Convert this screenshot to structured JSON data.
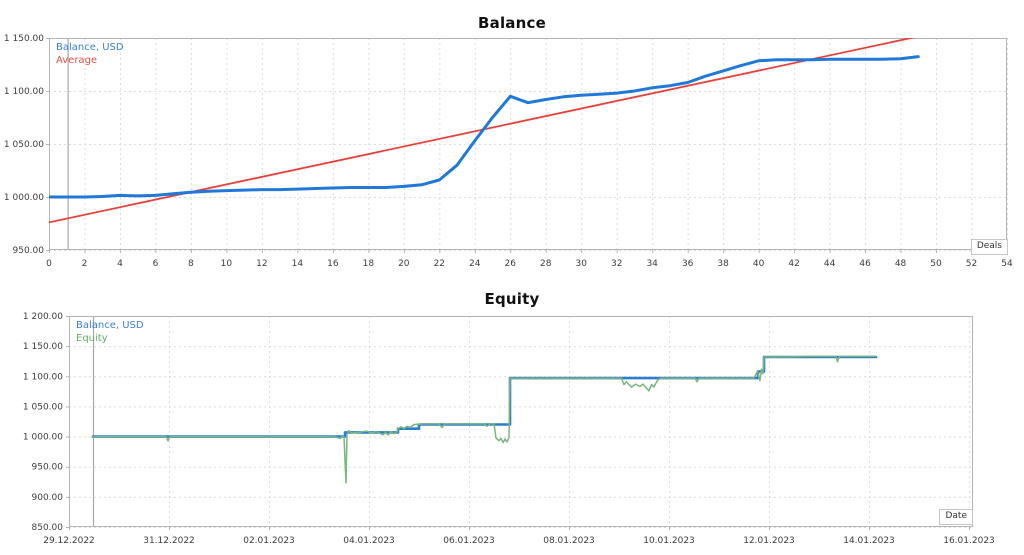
{
  "page": {
    "background": "#ffffff"
  },
  "chart_data": [
    {
      "type": "line",
      "title": "Balance",
      "axis_unit_label": "Deals",
      "legend": [
        {
          "label": "Balance, USD",
          "color": "#3d7fd0"
        },
        {
          "label": "Average",
          "color": "#e0524a"
        }
      ],
      "x_axis": {
        "range": [
          0,
          54
        ],
        "ticks": [
          0,
          2,
          4,
          6,
          8,
          10,
          12,
          14,
          16,
          18,
          20,
          22,
          24,
          26,
          28,
          30,
          32,
          34,
          36,
          38,
          40,
          42,
          44,
          46,
          48,
          50,
          52,
          54
        ],
        "grid": true
      },
      "y_axis": {
        "range": [
          950,
          1150
        ],
        "grid": true,
        "ticks": [
          {
            "v": 950,
            "label": "950.00"
          },
          {
            "v": 1000,
            "label": "1 000.00"
          },
          {
            "v": 1050,
            "label": "1 050.00"
          },
          {
            "v": 1100,
            "label": "1 100.00"
          },
          {
            "v": 1150,
            "label": "1 150.00"
          }
        ]
      },
      "start_line_x": 1.05,
      "series": [
        {
          "name": "initial-deposit",
          "color": "#a9c7e8",
          "width": 3,
          "points": [
            [
              0,
              1000
            ],
            [
              1.05,
              1000
            ]
          ]
        },
        {
          "name": "average",
          "color": "#e8403a",
          "width": 1.8,
          "points": [
            [
              0,
              976
            ],
            [
              49.3,
              1152.5
            ]
          ]
        },
        {
          "name": "balance",
          "color": "#2079d8",
          "width": 3,
          "points": [
            [
              0,
              1000
            ],
            [
              1,
              1000
            ],
            [
              2,
              1000
            ],
            [
              3,
              1000.5
            ],
            [
              4,
              1001.5
            ],
            [
              5,
              1001
            ],
            [
              6,
              1001.5
            ],
            [
              7,
              1003
            ],
            [
              8,
              1004.5
            ],
            [
              9,
              1005.5
            ],
            [
              10,
              1006
            ],
            [
              11,
              1006.5
            ],
            [
              12,
              1007
            ],
            [
              13,
              1007
            ],
            [
              14,
              1007.5
            ],
            [
              15,
              1008
            ],
            [
              16,
              1008.5
            ],
            [
              17,
              1009
            ],
            [
              18,
              1009
            ],
            [
              19,
              1009
            ],
            [
              20,
              1010
            ],
            [
              21,
              1011.5
            ],
            [
              22,
              1016
            ],
            [
              23,
              1030
            ],
            [
              24,
              1053
            ],
            [
              25,
              1075
            ],
            [
              26,
              1095
            ],
            [
              27,
              1089
            ],
            [
              28,
              1092
            ],
            [
              29,
              1094.5
            ],
            [
              30,
              1096
            ],
            [
              31,
              1097
            ],
            [
              32,
              1098
            ],
            [
              33,
              1100
            ],
            [
              34,
              1103
            ],
            [
              35,
              1105
            ],
            [
              36,
              1108
            ],
            [
              37,
              1114
            ],
            [
              38,
              1119
            ],
            [
              39,
              1124
            ],
            [
              40,
              1128.5
            ],
            [
              41,
              1129.5
            ],
            [
              42,
              1129.5
            ],
            [
              43,
              1129.5
            ],
            [
              44,
              1130
            ],
            [
              45,
              1130
            ],
            [
              46,
              1130
            ],
            [
              47,
              1130
            ],
            [
              48,
              1130.5
            ],
            [
              49,
              1132.5
            ]
          ]
        }
      ]
    },
    {
      "type": "line",
      "title": "Equity",
      "axis_unit_label": "Date",
      "legend": [
        {
          "label": "Balance, USD",
          "color": "#3d7fd0"
        },
        {
          "label": "Equity",
          "color": "#6aaa70"
        }
      ],
      "x_axis": {
        "range": [
          0,
          18.08
        ],
        "grid": true,
        "ticks": [
          {
            "v": 0,
            "label": "29.12.2022"
          },
          {
            "v": 2,
            "label": "31.12.2022"
          },
          {
            "v": 4,
            "label": "02.01.2023"
          },
          {
            "v": 6,
            "label": "04.01.2023"
          },
          {
            "v": 8,
            "label": "06.01.2023"
          },
          {
            "v": 10,
            "label": "08.01.2023"
          },
          {
            "v": 12,
            "label": "10.01.2023"
          },
          {
            "v": 14,
            "label": "12.01.2023"
          },
          {
            "v": 16,
            "label": "14.01.2023"
          },
          {
            "v": 18,
            "label": "16.01.2023"
          }
        ]
      },
      "y_axis": {
        "range": [
          850,
          1200
        ],
        "grid": true,
        "ticks": [
          {
            "v": 850,
            "label": "850.00"
          },
          {
            "v": 900,
            "label": "900.00"
          },
          {
            "v": 950,
            "label": "950.00"
          },
          {
            "v": 1000,
            "label": "1 000.00"
          },
          {
            "v": 1050,
            "label": "1 050.00"
          },
          {
            "v": 1100,
            "label": "1 100.00"
          },
          {
            "v": 1150,
            "label": "1 150.00"
          },
          {
            "v": 1200,
            "label": "1 200.00"
          }
        ]
      },
      "start_line_x": 0.48,
      "series": [
        {
          "name": "balance",
          "color": "#2b7cd3",
          "width": 2.6,
          "points": [
            [
              0.48,
              1000
            ],
            [
              5.52,
              1000
            ],
            [
              5.52,
              1007
            ],
            [
              6.58,
              1007
            ],
            [
              6.58,
              1013
            ],
            [
              7.0,
              1013
            ],
            [
              7.0,
              1020
            ],
            [
              8.82,
              1020
            ],
            [
              8.82,
              1097
            ],
            [
              13.78,
              1097
            ],
            [
              13.78,
              1108
            ],
            [
              13.9,
              1108
            ],
            [
              13.9,
              1132
            ],
            [
              16.14,
              1132
            ]
          ]
        },
        {
          "name": "equity",
          "color": "#79b57e",
          "width": 1.5,
          "points": [
            [
              0.48,
              1000
            ],
            [
              1.0,
              1000
            ],
            [
              1.94,
              1000
            ],
            [
              1.98,
              993
            ],
            [
              2.02,
              1000
            ],
            [
              3.0,
              1000
            ],
            [
              4.0,
              1000
            ],
            [
              5.0,
              1000
            ],
            [
              5.3,
              1000
            ],
            [
              5.42,
              997
            ],
            [
              5.46,
              1000
            ],
            [
              5.5,
              1000
            ],
            [
              5.52,
              960
            ],
            [
              5.54,
              923
            ],
            [
              5.56,
              1004
            ],
            [
              5.6,
              1010
            ],
            [
              5.64,
              1006
            ],
            [
              5.8,
              1007
            ],
            [
              5.95,
              1009
            ],
            [
              6.05,
              1006
            ],
            [
              6.15,
              1008
            ],
            [
              6.28,
              1003
            ],
            [
              6.33,
              1007
            ],
            [
              6.38,
              1003
            ],
            [
              6.44,
              1008
            ],
            [
              6.5,
              1005
            ],
            [
              6.56,
              1008
            ],
            [
              6.58,
              1013
            ],
            [
              6.64,
              1016
            ],
            [
              6.7,
              1013
            ],
            [
              6.76,
              1017
            ],
            [
              6.82,
              1015
            ],
            [
              6.9,
              1020
            ],
            [
              7.1,
              1021
            ],
            [
              7.4,
              1021
            ],
            [
              7.46,
              1015
            ],
            [
              7.52,
              1021
            ],
            [
              7.9,
              1021
            ],
            [
              8.3,
              1021
            ],
            [
              8.36,
              1017
            ],
            [
              8.42,
              1021
            ],
            [
              8.5,
              1021
            ],
            [
              8.54,
              998
            ],
            [
              8.6,
              993
            ],
            [
              8.64,
              997
            ],
            [
              8.68,
              990
            ],
            [
              8.72,
              996
            ],
            [
              8.76,
              991
            ],
            [
              8.8,
              999
            ],
            [
              8.82,
              1097
            ],
            [
              9.3,
              1097
            ],
            [
              10.0,
              1097
            ],
            [
              10.8,
              1097
            ],
            [
              11.05,
              1097
            ],
            [
              11.1,
              1086
            ],
            [
              11.15,
              1091
            ],
            [
              11.25,
              1082
            ],
            [
              11.33,
              1087
            ],
            [
              11.42,
              1083
            ],
            [
              11.48,
              1087
            ],
            [
              11.54,
              1081
            ],
            [
              11.6,
              1076
            ],
            [
              11.65,
              1086
            ],
            [
              11.7,
              1082
            ],
            [
              11.76,
              1092
            ],
            [
              11.82,
              1097
            ],
            [
              12.3,
              1097
            ],
            [
              12.52,
              1097
            ],
            [
              12.56,
              1091
            ],
            [
              12.6,
              1097
            ],
            [
              13.2,
              1097
            ],
            [
              13.7,
              1097
            ],
            [
              13.74,
              1104
            ],
            [
              13.77,
              1108
            ],
            [
              13.8,
              1097
            ],
            [
              13.82,
              1093
            ],
            [
              13.85,
              1112
            ],
            [
              13.88,
              1104
            ],
            [
              13.9,
              1132
            ],
            [
              14.3,
              1132
            ],
            [
              14.8,
              1133
            ],
            [
              15.34,
              1133
            ],
            [
              15.37,
              1124
            ],
            [
              15.41,
              1133
            ],
            [
              15.8,
              1133
            ],
            [
              16.14,
              1133
            ]
          ]
        }
      ]
    }
  ]
}
